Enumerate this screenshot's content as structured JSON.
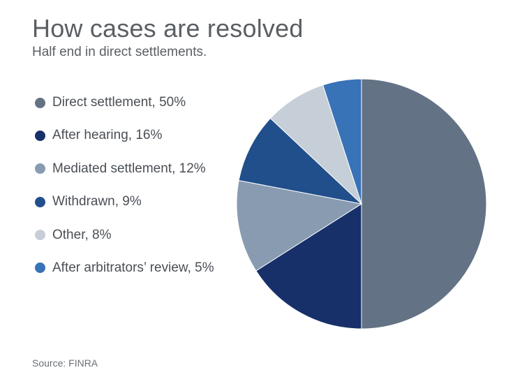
{
  "title": "How cases are resolved",
  "subtitle": "Half end in direct settlements.",
  "source": "Source: FINRA",
  "chart_data": {
    "type": "pie",
    "title": "How cases are resolved",
    "subtitle": "Half end in direct settlements.",
    "legend_position": "left",
    "slices": [
      {
        "label": "Direct settlement, 50%",
        "name": "Direct settlement",
        "value": 50,
        "color": "#637285"
      },
      {
        "label": "After hearing, 16%",
        "name": "After hearing",
        "value": 16,
        "color": "#17306a"
      },
      {
        "label": "Mediated settlement, 12%",
        "name": "Mediated settlement",
        "value": 12,
        "color": "#889bb1"
      },
      {
        "label": "Withdrawn, 9%",
        "name": "Withdrawn",
        "value": 9,
        "color": "#214f8b"
      },
      {
        "label": "Other, 8%",
        "name": "Other",
        "value": 8,
        "color": "#c6ced7"
      },
      {
        "label": "After arbitrators’ review, 5%",
        "name": "After arbitrators’ review",
        "value": 5,
        "color": "#3872b7"
      }
    ]
  }
}
